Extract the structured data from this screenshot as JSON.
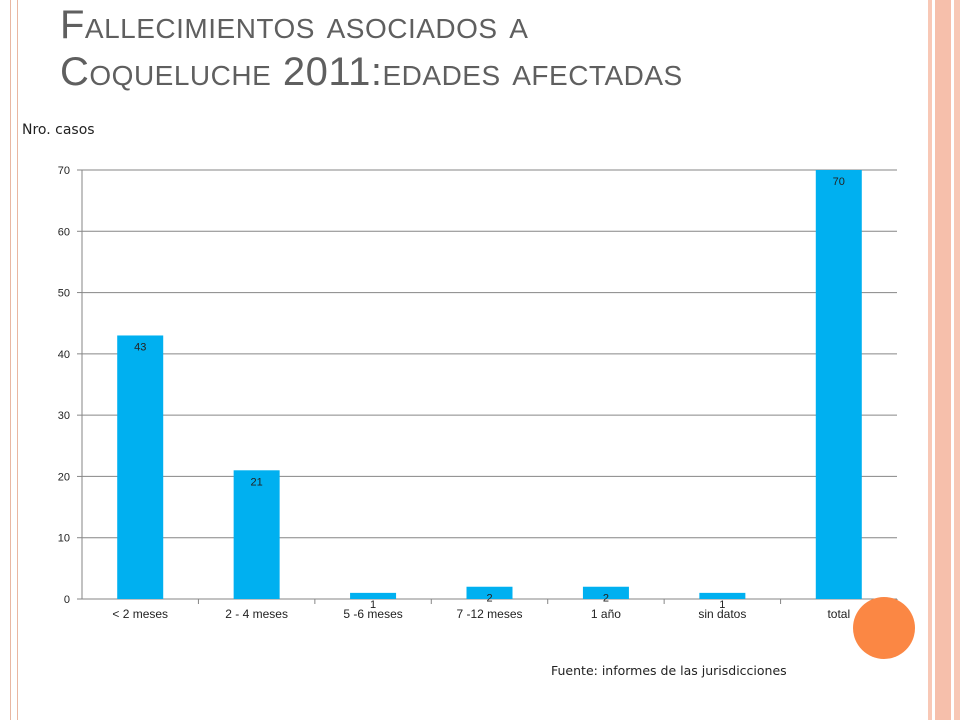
{
  "slide": {
    "title_line1": "Fallecimientos asociados a",
    "title_line2": "Coqueluche 2011:edades afectadas",
    "source": "Fuente: informes de las jurisdicciones"
  },
  "chart_data": {
    "type": "bar",
    "title": "",
    "ylabel": "Nro. casos",
    "xlabel": "",
    "categories": [
      "< 2 meses",
      "2 - 4 meses",
      "5 -6 meses",
      "7 -12 meses",
      "1 año",
      "sin datos",
      "total"
    ],
    "values": [
      43,
      21,
      1,
      2,
      2,
      1,
      70
    ],
    "data_labels": [
      "43",
      "21",
      "1",
      "2",
      "2",
      "1",
      "70"
    ],
    "ylim": [
      0,
      70
    ],
    "yticks": [
      0,
      10,
      20,
      30,
      40,
      50,
      60,
      70
    ],
    "grid": true,
    "legend": "none",
    "bar_color": "#00b0f0"
  },
  "theme": {
    "accent_dot": "#fb8744",
    "stripe_color": "#f6bfab"
  }
}
